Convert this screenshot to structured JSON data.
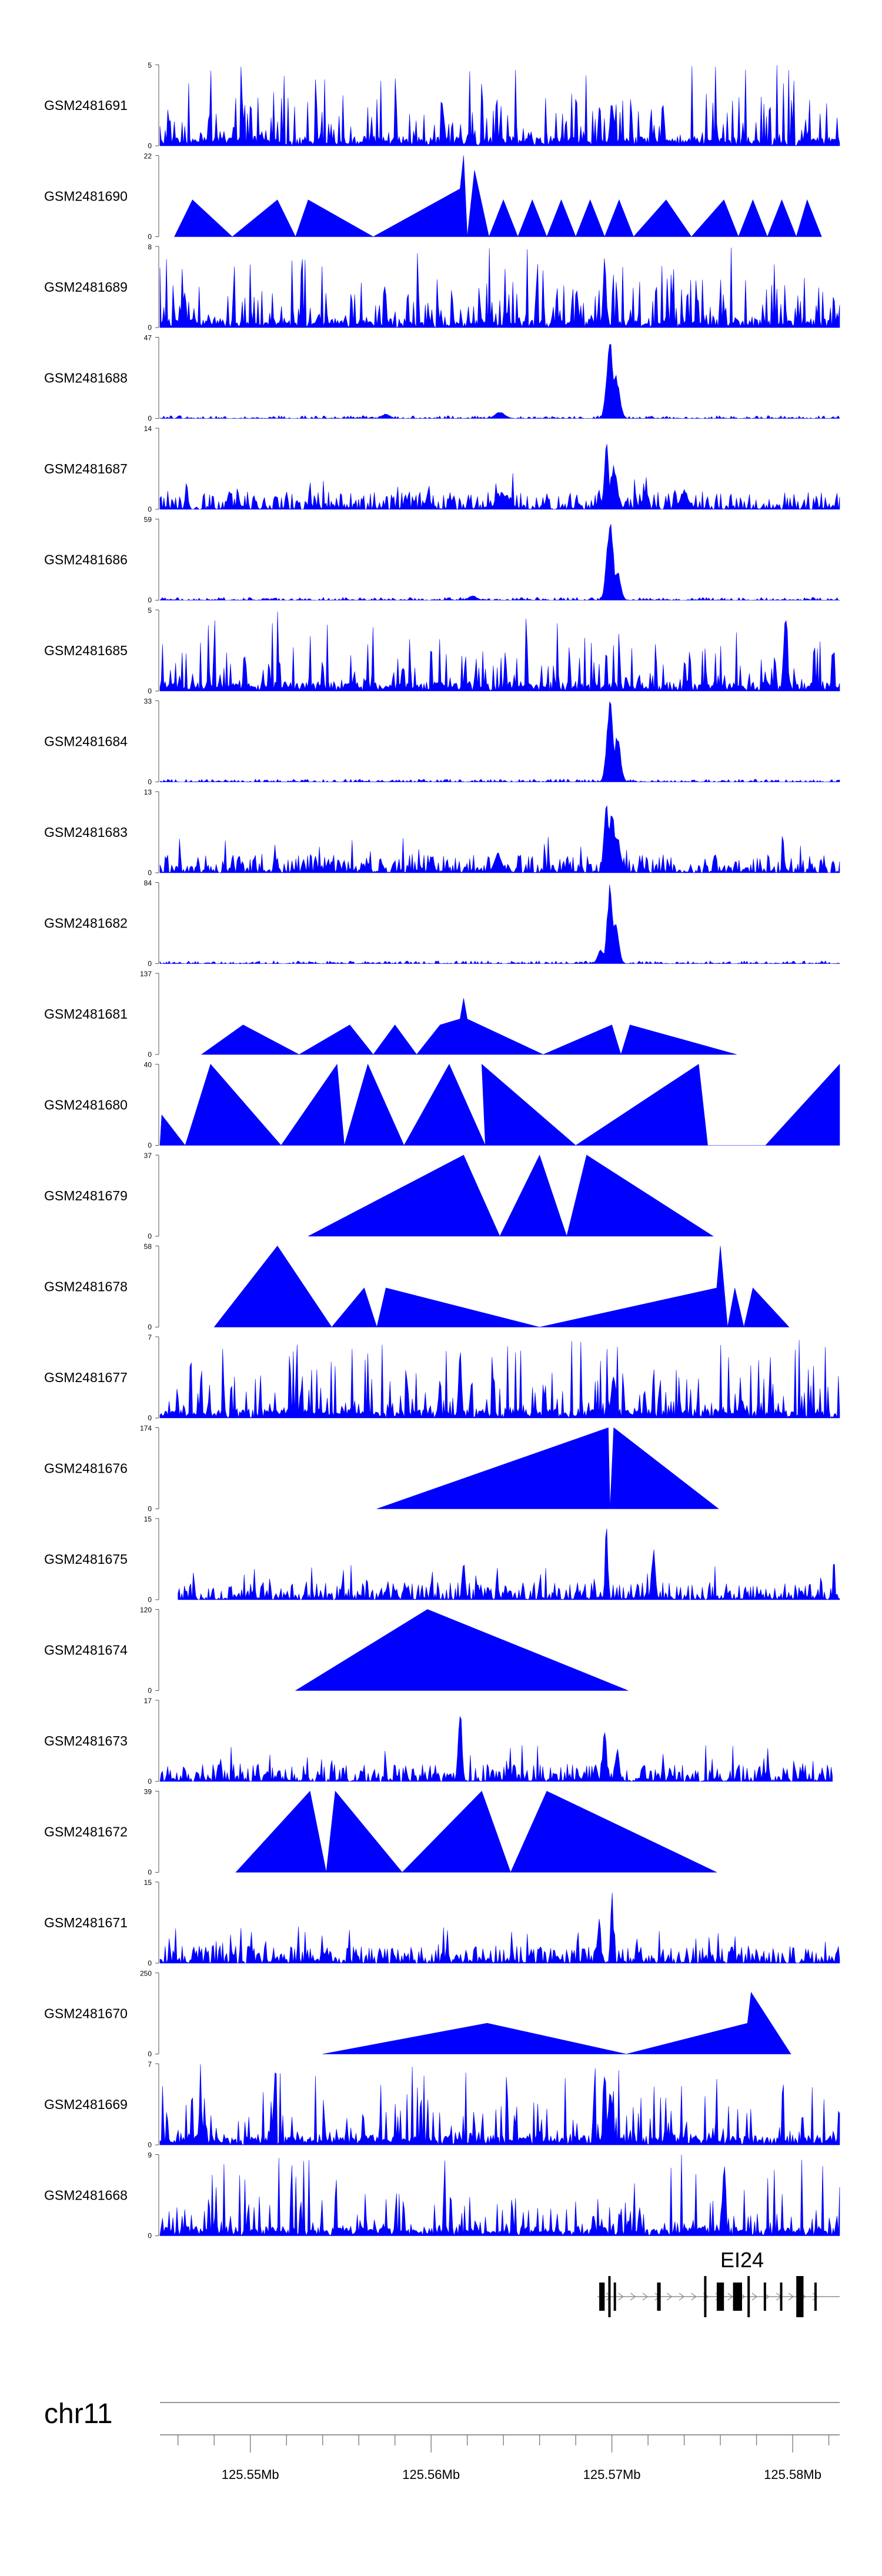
{
  "chart_data": {
    "type": "area",
    "chromosome": "chr11",
    "gene_label": "EI24",
    "fill_color": "#0000ff",
    "genome_axis": {
      "min": 125545000,
      "max": 125582600,
      "major_ticks": [
        125550000,
        125560000,
        125570000,
        125580000
      ],
      "labels": [
        "125.55Mb",
        "125.56Mb",
        "125.57Mb",
        "125.58Mb"
      ]
    },
    "tracks": [
      {
        "name": "GSM2481691",
        "ymax": "5",
        "ymin": "0",
        "ymax_value": 5,
        "profile": "dense",
        "seed": 11,
        "covered": [
          125545000,
          125582600
        ],
        "peaks": [
          [
            125570000,
            0.6,
            150
          ]
        ]
      },
      {
        "name": "GSM2481690",
        "ymax": "22",
        "ymin": "0",
        "ymax_value": 22,
        "profile": "sparse",
        "seed": 12,
        "points": [
          [
            125545800,
            0
          ],
          [
            125546800,
            10
          ],
          [
            125549000,
            0
          ],
          [
            125551500,
            10
          ],
          [
            125552500,
            0
          ],
          [
            125553200,
            10
          ],
          [
            125556800,
            0
          ],
          [
            125561600,
            13
          ],
          [
            125561800,
            22
          ],
          [
            125562000,
            0
          ],
          [
            125562400,
            18
          ],
          [
            125563200,
            0
          ],
          [
            125564000,
            10
          ],
          [
            125564800,
            0
          ],
          [
            125565600,
            10
          ],
          [
            125566400,
            0
          ],
          [
            125567200,
            10
          ],
          [
            125568000,
            0
          ],
          [
            125568800,
            10
          ],
          [
            125569600,
            0
          ],
          [
            125570400,
            10
          ],
          [
            125571200,
            0
          ],
          [
            125573000,
            10
          ],
          [
            125574400,
            0
          ],
          [
            125576200,
            10
          ],
          [
            125577000,
            0
          ],
          [
            125577800,
            10
          ],
          [
            125578600,
            0
          ],
          [
            125579400,
            10
          ],
          [
            125580200,
            0
          ],
          [
            125580800,
            10
          ],
          [
            125581600,
            0
          ]
        ]
      },
      {
        "name": "GSM2481689",
        "ymax": "8",
        "ymin": "0",
        "ymax_value": 8,
        "profile": "dense",
        "seed": 13,
        "covered": [
          125545000,
          125582600
        ],
        "peaks": [
          [
            125569600,
            1.0,
            120
          ]
        ]
      },
      {
        "name": "GSM2481688",
        "ymax": "47",
        "ymin": "0",
        "ymax_value": 47,
        "profile": "quiet",
        "seed": 14,
        "covered": [
          125545000,
          125582600
        ],
        "peaks": [
          [
            125569900,
            1.0,
            260
          ],
          [
            125570200,
            0.55,
            300
          ],
          [
            125563800,
            0.08,
            400
          ],
          [
            125557500,
            0.06,
            300
          ]
        ]
      },
      {
        "name": "GSM2481687",
        "ymax": "14",
        "ymin": "0",
        "ymax_value": 14,
        "profile": "medium",
        "seed": 15,
        "covered": [
          125545000,
          125582600
        ],
        "peaks": [
          [
            125569700,
            0.95,
            150
          ],
          [
            125570100,
            0.55,
            280
          ],
          [
            125574000,
            0.25,
            300
          ],
          [
            125564000,
            0.2,
            500
          ]
        ]
      },
      {
        "name": "GSM2481686",
        "ymax": "59",
        "ymin": "0",
        "ymax_value": 59,
        "profile": "quiet",
        "seed": 16,
        "covered": [
          125545000,
          125582600
        ],
        "peaks": [
          [
            125569900,
            1.0,
            260
          ],
          [
            125570300,
            0.4,
            250
          ],
          [
            125562300,
            0.06,
            300
          ]
        ]
      },
      {
        "name": "GSM2481685",
        "ymax": "5",
        "ymin": "0",
        "ymax_value": 5,
        "profile": "dense",
        "seed": 17,
        "covered": [
          125545000,
          125582600
        ],
        "peaks": [
          [
            125579600,
            1.0,
            150
          ]
        ]
      },
      {
        "name": "GSM2481684",
        "ymax": "33",
        "ymin": "0",
        "ymax_value": 33,
        "profile": "quiet",
        "seed": 18,
        "covered": [
          125545000,
          125582600
        ],
        "peaks": [
          [
            125569900,
            1.0,
            250
          ],
          [
            125570300,
            0.6,
            250
          ]
        ]
      },
      {
        "name": "GSM2481683",
        "ymax": "13",
        "ymin": "0",
        "ymax_value": 13,
        "profile": "medium",
        "seed": 19,
        "covered": [
          125545000,
          125582600
        ],
        "peaks": [
          [
            125569700,
            1.0,
            150
          ],
          [
            125570000,
            0.75,
            250
          ],
          [
            125570300,
            0.5,
            250
          ],
          [
            125563700,
            0.25,
            300
          ]
        ]
      },
      {
        "name": "GSM2481682",
        "ymax": "84",
        "ymin": "0",
        "ymax_value": 84,
        "profile": "quiet",
        "seed": 20,
        "covered": [
          125545000,
          125582600
        ],
        "peaks": [
          [
            125569900,
            1.0,
            220
          ],
          [
            125570200,
            0.5,
            250
          ],
          [
            125569400,
            0.18,
            250
          ]
        ]
      },
      {
        "name": "GSM2481681",
        "ymax": "137",
        "ymin": "0",
        "ymax_value": 137,
        "profile": "sparse",
        "seed": 21,
        "points": [
          [
            125547300,
            0
          ],
          [
            125549600,
            50
          ],
          [
            125552700,
            0
          ],
          [
            125555500,
            50
          ],
          [
            125556800,
            0
          ],
          [
            125558000,
            50
          ],
          [
            125559200,
            0
          ],
          [
            125560500,
            50
          ],
          [
            125561600,
            60
          ],
          [
            125561800,
            95
          ],
          [
            125562000,
            60
          ],
          [
            125566200,
            0
          ],
          [
            125570000,
            50
          ],
          [
            125570500,
            0
          ],
          [
            125571000,
            50
          ],
          [
            125576900,
            0
          ]
        ]
      },
      {
        "name": "GSM2481680",
        "ymax": "40",
        "ymin": "0",
        "ymax_value": 40,
        "profile": "sparse",
        "seed": 22,
        "points": [
          [
            125545000,
            0
          ],
          [
            125545100,
            15
          ],
          [
            125546400,
            0
          ],
          [
            125547800,
            40
          ],
          [
            125551700,
            0
          ],
          [
            125554800,
            40
          ],
          [
            125555200,
            0
          ],
          [
            125556500,
            40
          ],
          [
            125558500,
            0
          ],
          [
            125561000,
            40
          ],
          [
            125563000,
            0
          ],
          [
            125562800,
            40
          ],
          [
            125568000,
            0
          ],
          [
            125574800,
            40
          ],
          [
            125575300,
            0
          ],
          [
            125578500,
            0
          ],
          [
            125582600,
            40
          ],
          [
            125582600,
            0
          ]
        ]
      },
      {
        "name": "GSM2481679",
        "ymax": "37",
        "ymin": "0",
        "ymax_value": 37,
        "profile": "sparse",
        "seed": 23,
        "points": [
          [
            125553200,
            0
          ],
          [
            125561800,
            37
          ],
          [
            125563800,
            0
          ],
          [
            125566000,
            37
          ],
          [
            125567500,
            0
          ],
          [
            125568600,
            37
          ],
          [
            125575600,
            0
          ]
        ]
      },
      {
        "name": "GSM2481678",
        "ymax": "58",
        "ymin": "0",
        "ymax_value": 58,
        "profile": "sparse",
        "seed": 24,
        "points": [
          [
            125548000,
            0
          ],
          [
            125551500,
            58
          ],
          [
            125554500,
            0
          ],
          [
            125556300,
            28
          ],
          [
            125557000,
            0
          ],
          [
            125557500,
            28
          ],
          [
            125566000,
            0
          ],
          [
            125575800,
            28
          ],
          [
            125576000,
            58
          ],
          [
            125576400,
            0
          ],
          [
            125576800,
            28
          ],
          [
            125577300,
            0
          ],
          [
            125577800,
            28
          ],
          [
            125579800,
            0
          ]
        ]
      },
      {
        "name": "GSM2481677",
        "ymax": "7",
        "ymin": "0",
        "ymax_value": 7,
        "profile": "dense",
        "seed": 25,
        "covered": [
          125545000,
          125582600
        ],
        "peaks": [
          [
            125561600,
            0.95,
            120
          ],
          [
            125570100,
            0.55,
            200
          ]
        ]
      },
      {
        "name": "GSM2481676",
        "ymax": "174",
        "ymin": "0",
        "ymax_value": 174,
        "profile": "sparse",
        "seed": 26,
        "points": [
          [
            125557000,
            0
          ],
          [
            125569800,
            174
          ],
          [
            125569900,
            0
          ],
          [
            125570100,
            174
          ],
          [
            125575900,
            0
          ]
        ]
      },
      {
        "name": "GSM2481675",
        "ymax": "15",
        "ymin": "0",
        "ymax_value": 15,
        "profile": "medium",
        "seed": 27,
        "covered": [
          125546000,
          125582600
        ],
        "peaks": [
          [
            125569700,
            1.0,
            100
          ],
          [
            125572300,
            0.65,
            150
          ],
          [
            125561800,
            0.55,
            120
          ]
        ]
      },
      {
        "name": "GSM2481674",
        "ymax": "120",
        "ymin": "0",
        "ymax_value": 120,
        "profile": "sparse",
        "seed": 28,
        "points": [
          [
            125552500,
            0
          ],
          [
            125559800,
            120
          ],
          [
            125570900,
            0
          ]
        ]
      },
      {
        "name": "GSM2481673",
        "ymax": "17",
        "ymin": "0",
        "ymax_value": 17,
        "profile": "medium",
        "seed": 29,
        "covered": [
          125545000,
          125582200
        ],
        "peaks": [
          [
            125561600,
            1.0,
            140
          ],
          [
            125569600,
            0.7,
            140
          ],
          [
            125570300,
            0.45,
            150
          ]
        ]
      },
      {
        "name": "GSM2481672",
        "ymax": "39",
        "ymin": "0",
        "ymax_value": 39,
        "profile": "sparse",
        "seed": 30,
        "points": [
          [
            125549200,
            0
          ],
          [
            125553300,
            39
          ],
          [
            125554200,
            0
          ],
          [
            125554700,
            39
          ],
          [
            125558400,
            0
          ],
          [
            125562800,
            39
          ],
          [
            125564400,
            0
          ],
          [
            125566400,
            39
          ],
          [
            125575800,
            0
          ]
        ]
      },
      {
        "name": "GSM2481671",
        "ymax": "15",
        "ymin": "0",
        "ymax_value": 15,
        "profile": "medium",
        "seed": 31,
        "covered": [
          125545000,
          125582600
        ],
        "peaks": [
          [
            125570000,
            1.0,
            100
          ],
          [
            125569300,
            0.6,
            120
          ]
        ]
      },
      {
        "name": "GSM2481670",
        "ymax": "250",
        "ymin": "0",
        "ymax_value": 250,
        "profile": "sparse",
        "seed": 32,
        "points": [
          [
            125554000,
            0
          ],
          [
            125563100,
            95
          ],
          [
            125570800,
            0
          ],
          [
            125577500,
            95
          ],
          [
            125577700,
            190
          ],
          [
            125579900,
            0
          ]
        ]
      },
      {
        "name": "GSM2481669",
        "ymax": "7",
        "ymin": "0",
        "ymax_value": 7,
        "profile": "dense",
        "seed": 33,
        "covered": [
          125545000,
          125582600
        ],
        "peaks": [
          [
            125569600,
            1.0,
            120
          ],
          [
            125569900,
            0.7,
            150
          ]
        ]
      },
      {
        "name": "GSM2481668",
        "ymax": "9",
        "ymin": "0",
        "ymax_value": 9,
        "profile": "dense",
        "seed": 34,
        "covered": [
          125545000,
          125582600
        ],
        "peaks": [
          [
            125576200,
            1.0,
            120
          ]
        ]
      }
    ],
    "gene_model": {
      "start": 125569200,
      "end": 125582600,
      "exons": [
        [
          125569300,
          125569600
        ],
        [
          125569800,
          125569900
        ],
        [
          125570100,
          125570200
        ],
        [
          125572500,
          125572700
        ],
        [
          125575100,
          125575200
        ],
        [
          125575800,
          125576200
        ],
        [
          125576700,
          125577200
        ],
        [
          125577500,
          125577600
        ],
        [
          125578400,
          125578500
        ],
        [
          125579300,
          125579400
        ],
        [
          125580200,
          125580600
        ],
        [
          125581200,
          125581300
        ]
      ]
    }
  }
}
